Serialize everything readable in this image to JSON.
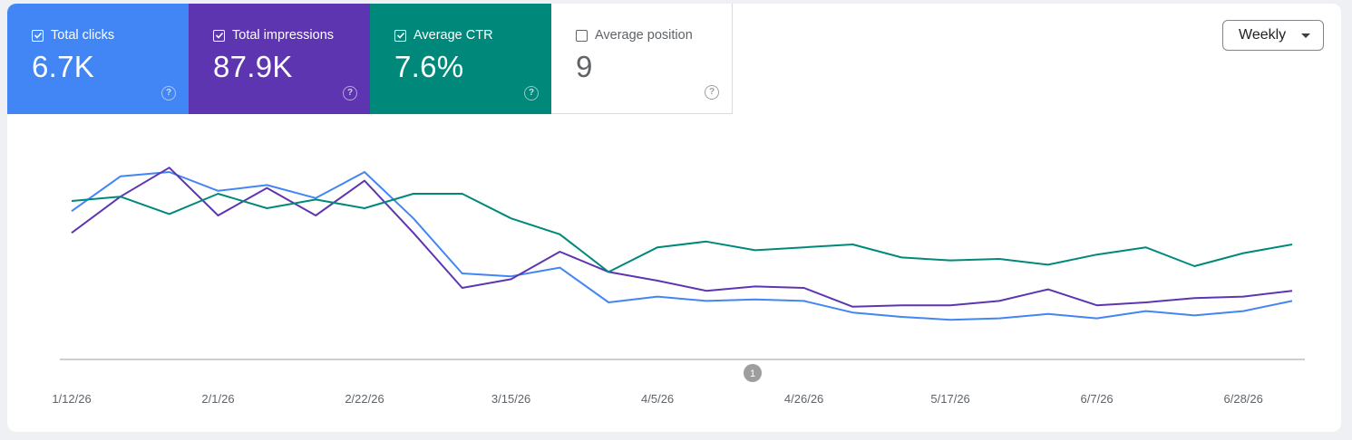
{
  "metrics": [
    {
      "label": "Total clicks",
      "value": "6.7K",
      "checked": true,
      "color": "#4285f4"
    },
    {
      "label": "Total impressions",
      "value": "87.9K",
      "checked": true,
      "color": "#5e35b1"
    },
    {
      "label": "Average CTR",
      "value": "7.6%",
      "checked": true,
      "color": "#00897b"
    },
    {
      "label": "Average position",
      "value": "9",
      "checked": false,
      "color": "#ffffff"
    }
  ],
  "help_glyph": "?",
  "period_select": {
    "value": "Weekly"
  },
  "annotation": {
    "label": "1"
  },
  "chart_data": {
    "type": "line",
    "x": [
      "1/12/26",
      "1/19/26",
      "1/26/26",
      "2/1/26",
      "2/8/26",
      "2/15/26",
      "2/22/26",
      "3/1/26",
      "3/8/26",
      "3/15/26",
      "3/22/26",
      "3/29/26",
      "4/5/26",
      "4/12/26",
      "4/19/26",
      "4/26/26",
      "5/3/26",
      "5/10/26",
      "5/17/26",
      "5/24/26",
      "5/31/26",
      "6/7/26",
      "6/14/26",
      "6/21/26",
      "6/28/26",
      "7/5/26"
    ],
    "x_tick_labels": [
      "1/12/26",
      "2/1/26",
      "2/22/26",
      "3/15/26",
      "4/5/26",
      "4/26/26",
      "5/17/26",
      "6/7/26",
      "6/28/26"
    ],
    "y_axis_visible": false,
    "series": [
      {
        "key": "clicks",
        "color": "#4285f4",
        "values": [
          63,
          87,
          90,
          77,
          81,
          72,
          90,
          58,
          20,
          18,
          24,
          0,
          4,
          1,
          2,
          1,
          -7,
          -10,
          -12,
          -11,
          -8,
          -11,
          -6,
          -9,
          -6,
          1
        ]
      },
      {
        "key": "impressions",
        "color": "#5e35b1",
        "values": [
          48,
          73,
          93,
          60,
          79,
          60,
          84,
          48,
          10,
          16,
          35,
          21,
          15,
          8,
          11,
          10,
          -3,
          -2,
          -2,
          1,
          9,
          -2,
          0,
          3,
          4,
          8
        ]
      },
      {
        "key": "ctr",
        "color": "#00897b",
        "values": [
          70,
          73,
          61,
          75,
          65,
          71,
          65,
          75,
          75,
          58,
          47,
          21,
          38,
          42,
          36,
          38,
          40,
          31,
          29,
          30,
          26,
          33,
          38,
          25,
          34,
          40
        ]
      }
    ]
  }
}
